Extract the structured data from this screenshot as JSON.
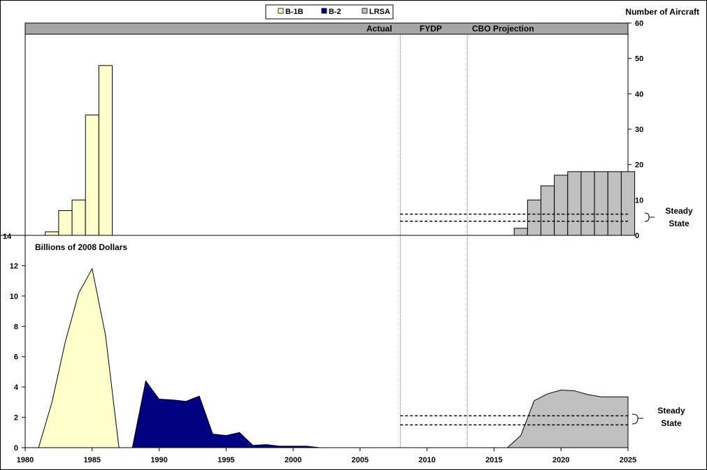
{
  "legend": [
    {
      "label": "B-1B",
      "color": "#FFFFCC"
    },
    {
      "label": "B-2",
      "color": "#000080"
    },
    {
      "label": "LRSA",
      "color": "#C0C0C0"
    }
  ],
  "header_bar": {
    "actual": "Actual",
    "fydp": "FYDP",
    "cbo": "CBO Projection"
  },
  "top_panel": {
    "right_axis_title": "Number of Aircraft",
    "left_label": "14",
    "steady_state": "Steady\nState"
  },
  "bottom_panel": {
    "title": "Billions of 2008 Dollars",
    "steady_state": "Steady\nState"
  },
  "chart_data": [
    {
      "type": "bar",
      "title": "",
      "ylabel": "Number of Aircraft",
      "ylim": [
        0,
        60
      ],
      "yticks": [
        0,
        10,
        20,
        30,
        40,
        50,
        60
      ],
      "series": [
        {
          "name": "B-1B",
          "color": "#FFFFCC",
          "x": [
            1982,
            1983,
            1984,
            1985,
            1986
          ],
          "values": [
            1,
            7,
            10,
            34,
            48
          ]
        },
        {
          "name": "LRSA",
          "color": "#C0C0C0",
          "x": [
            2017,
            2018,
            2019,
            2020,
            2021,
            2022,
            2023,
            2024,
            2025
          ],
          "values": [
            2,
            10,
            14,
            17,
            18,
            18,
            18,
            18,
            18
          ]
        }
      ],
      "steady_state_band": [
        4,
        6
      ],
      "steady_state_x": [
        2008,
        2025
      ]
    },
    {
      "type": "area",
      "title": "Billions of 2008 Dollars",
      "xlim": [
        1980,
        2025
      ],
      "xticks": [
        1980,
        1985,
        1990,
        1995,
        2000,
        2005,
        2010,
        2015,
        2020,
        2025
      ],
      "ylim": [
        0,
        14
      ],
      "yticks": [
        0,
        2,
        4,
        6,
        8,
        10,
        12,
        14
      ],
      "series": [
        {
          "name": "B-1B",
          "color": "#FFFFCC",
          "x": [
            1981,
            1982,
            1983,
            1984,
            1985,
            1986,
            1987
          ],
          "values": [
            0,
            3.0,
            7.0,
            10.2,
            11.8,
            7.4,
            0
          ]
        },
        {
          "name": "B-2",
          "color": "#000080",
          "x": [
            1988,
            1989,
            1990,
            1991,
            1992,
            1993,
            1994,
            1995,
            1996,
            1997,
            1998,
            1999,
            2000,
            2001,
            2002
          ],
          "values": [
            0,
            4.4,
            3.2,
            3.15,
            3.05,
            3.4,
            0.9,
            0.8,
            1.0,
            0.15,
            0.2,
            0.1,
            0.1,
            0.1,
            0
          ]
        },
        {
          "name": "LRSA",
          "color": "#C0C0C0",
          "x": [
            2016,
            2017,
            2018,
            2019,
            2020,
            2021,
            2022,
            2023,
            2024,
            2025
          ],
          "values": [
            0,
            0.8,
            3.1,
            3.55,
            3.8,
            3.75,
            3.5,
            3.35,
            3.35,
            3.35
          ]
        }
      ],
      "steady_state_band": [
        1.5,
        2.1
      ],
      "steady_state_x": [
        2008,
        2025
      ]
    }
  ],
  "period_markers": [
    2008,
    2013
  ]
}
